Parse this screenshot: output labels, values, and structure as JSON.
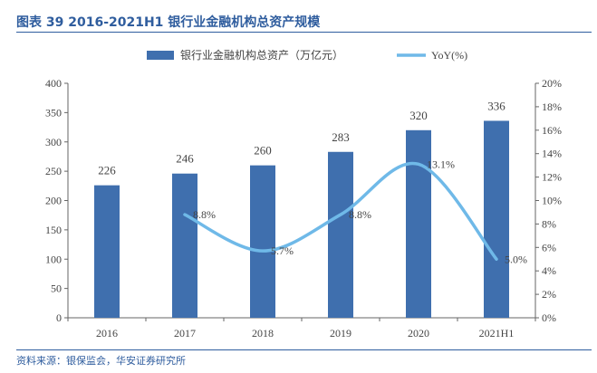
{
  "title": "图表 39 2016-2021H1 银行业金融机构总资产规模",
  "source": "资料来源：银保监会，华安证券研究所",
  "colors": {
    "title": "#2f5d9e",
    "bar": "#3f6fae",
    "line": "#6fb9e8",
    "axis": "#666666"
  },
  "chart_data": {
    "type": "bar",
    "categories": [
      "2016",
      "2017",
      "2018",
      "2019",
      "2020",
      "2021H1"
    ],
    "series": [
      {
        "name": "银行业金融机构总资产（万亿元）",
        "type": "bar",
        "axis": "left",
        "values": [
          226,
          246,
          260,
          283,
          320,
          336
        ],
        "labels": [
          "226",
          "246",
          "260",
          "283",
          "320",
          "336"
        ]
      },
      {
        "name": "YoY(%)",
        "type": "line",
        "axis": "right",
        "values": [
          null,
          8.8,
          5.7,
          8.8,
          13.1,
          5.0
        ],
        "labels": [
          "",
          "8.8%",
          "5.7%",
          "8.8%",
          "13.1%",
          "5.0%"
        ]
      }
    ],
    "yleft": {
      "lim": [
        0,
        400
      ],
      "ticks": [
        "0",
        "50",
        "100",
        "150",
        "200",
        "250",
        "300",
        "350",
        "400"
      ]
    },
    "yright": {
      "lim": [
        0,
        20
      ],
      "ticks": [
        "0%",
        "2%",
        "4%",
        "6%",
        "8%",
        "10%",
        "12%",
        "14%",
        "16%",
        "18%",
        "20%"
      ]
    },
    "legend_position": "top",
    "grid": false
  }
}
